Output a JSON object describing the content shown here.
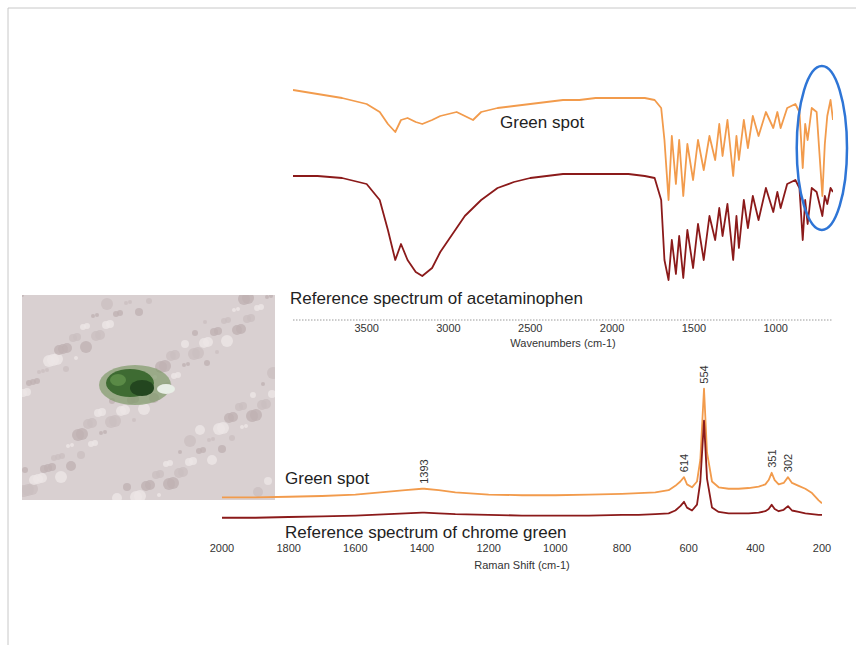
{
  "chart_data": [
    {
      "type": "line",
      "x_label": "Wavenumbers (cm-1)",
      "x": [
        3950,
        3800,
        3650,
        3500,
        3420,
        3370,
        3325,
        3290,
        3250,
        3200,
        3160,
        3100,
        3050,
        3000,
        2950,
        2900,
        2850,
        2800,
        2700,
        2600,
        2500,
        2400,
        2300,
        2200,
        2100,
        2000,
        1900,
        1800,
        1740,
        1700,
        1680,
        1655,
        1635,
        1610,
        1590,
        1565,
        1540,
        1505,
        1475,
        1440,
        1405,
        1370,
        1345,
        1325,
        1295,
        1260,
        1240,
        1225,
        1195,
        1170,
        1140,
        1105,
        1060,
        1015,
        990,
        970,
        930,
        880,
        855,
        835,
        820,
        805,
        780,
        750,
        715,
        700,
        685,
        665,
        650
      ],
      "series": [
        {
          "name": "Green spot",
          "color": "#f29b4c",
          "values": [
            95,
            93,
            91,
            88,
            84,
            78,
            74,
            80,
            81,
            79,
            78,
            80,
            82,
            83,
            84,
            82,
            80,
            84,
            86,
            87,
            88,
            89,
            90,
            90,
            91,
            91,
            91,
            91,
            90,
            86,
            70,
            40,
            72,
            48,
            70,
            42,
            68,
            50,
            70,
            55,
            72,
            60,
            78,
            62,
            80,
            52,
            72,
            60,
            80,
            66,
            82,
            72,
            84,
            76,
            84,
            76,
            86,
            88,
            84,
            56,
            78,
            70,
            86,
            84,
            42,
            68,
            82,
            90,
            80
          ]
        },
        {
          "name": "Reference spectrum of acetaminophen",
          "color": "#8b1a1a",
          "values": [
            52,
            52,
            51,
            48,
            40,
            25,
            10,
            18,
            10,
            4,
            2,
            6,
            14,
            20,
            26,
            32,
            36,
            40,
            46,
            49,
            51,
            52,
            53,
            53,
            53,
            53,
            53,
            52,
            51,
            40,
            10,
            0,
            20,
            3,
            22,
            1,
            25,
            6,
            28,
            10,
            32,
            20,
            36,
            22,
            38,
            10,
            32,
            16,
            40,
            26,
            42,
            30,
            46,
            34,
            44,
            36,
            48,
            50,
            46,
            20,
            40,
            28,
            46,
            44,
            32,
            42,
            38,
            46,
            44
          ]
        }
      ],
      "xlim": [
        3950,
        650
      ],
      "xticks": [
        3500,
        3000,
        2500,
        2000,
        1500,
        1000
      ],
      "ylim": [
        0,
        100
      ],
      "grid": false,
      "tick_labels": "x"
    },
    {
      "type": "line",
      "x_label": "Raman Shift (cm-1)",
      "x": [
        2000,
        1900,
        1800,
        1700,
        1600,
        1500,
        1450,
        1400,
        1393,
        1350,
        1300,
        1200,
        1100,
        1000,
        900,
        800,
        750,
        700,
        660,
        640,
        625,
        614,
        605,
        590,
        575,
        565,
        554,
        545,
        530,
        510,
        480,
        450,
        420,
        390,
        370,
        360,
        351,
        342,
        330,
        315,
        302,
        290,
        270,
        250,
        230,
        210,
        200
      ],
      "series": [
        {
          "name": "Green spot",
          "color": "#f29b4c",
          "values": [
            19,
            19,
            19.5,
            20,
            21,
            23,
            24,
            25,
            25,
            24,
            22.5,
            21,
            20.5,
            20.5,
            21,
            21.5,
            22,
            22.5,
            24,
            27,
            30,
            33,
            28,
            26,
            30,
            45,
            94,
            50,
            30,
            26,
            25,
            25,
            25.5,
            26.5,
            28,
            31,
            36,
            31,
            28,
            29,
            33,
            29,
            27,
            25,
            22,
            17,
            15
          ]
        },
        {
          "name": "Reference spectrum of chrome green",
          "color": "#8b1a1a",
          "values": [
            5,
            5,
            5.5,
            6,
            6.5,
            7.5,
            8,
            8.5,
            8.5,
            8,
            7.5,
            7,
            6.5,
            6.5,
            6.5,
            7,
            7,
            7.5,
            8,
            10,
            13,
            16,
            12,
            10,
            14,
            30,
            72,
            32,
            12,
            9,
            8,
            8,
            8,
            8.5,
            9.5,
            11,
            14,
            11,
            9.5,
            10.5,
            13,
            10,
            9,
            8,
            7.5,
            7,
            7
          ]
        }
      ],
      "xlim": [
        2000,
        200
      ],
      "xticks": [
        2000,
        1800,
        1600,
        1400,
        1200,
        1000,
        800,
        600,
        400,
        200
      ],
      "ylim": [
        0,
        100
      ],
      "grid": false,
      "tick_labels": "x",
      "peak_labels": [
        1393,
        614,
        554,
        351,
        302
      ]
    }
  ]
}
